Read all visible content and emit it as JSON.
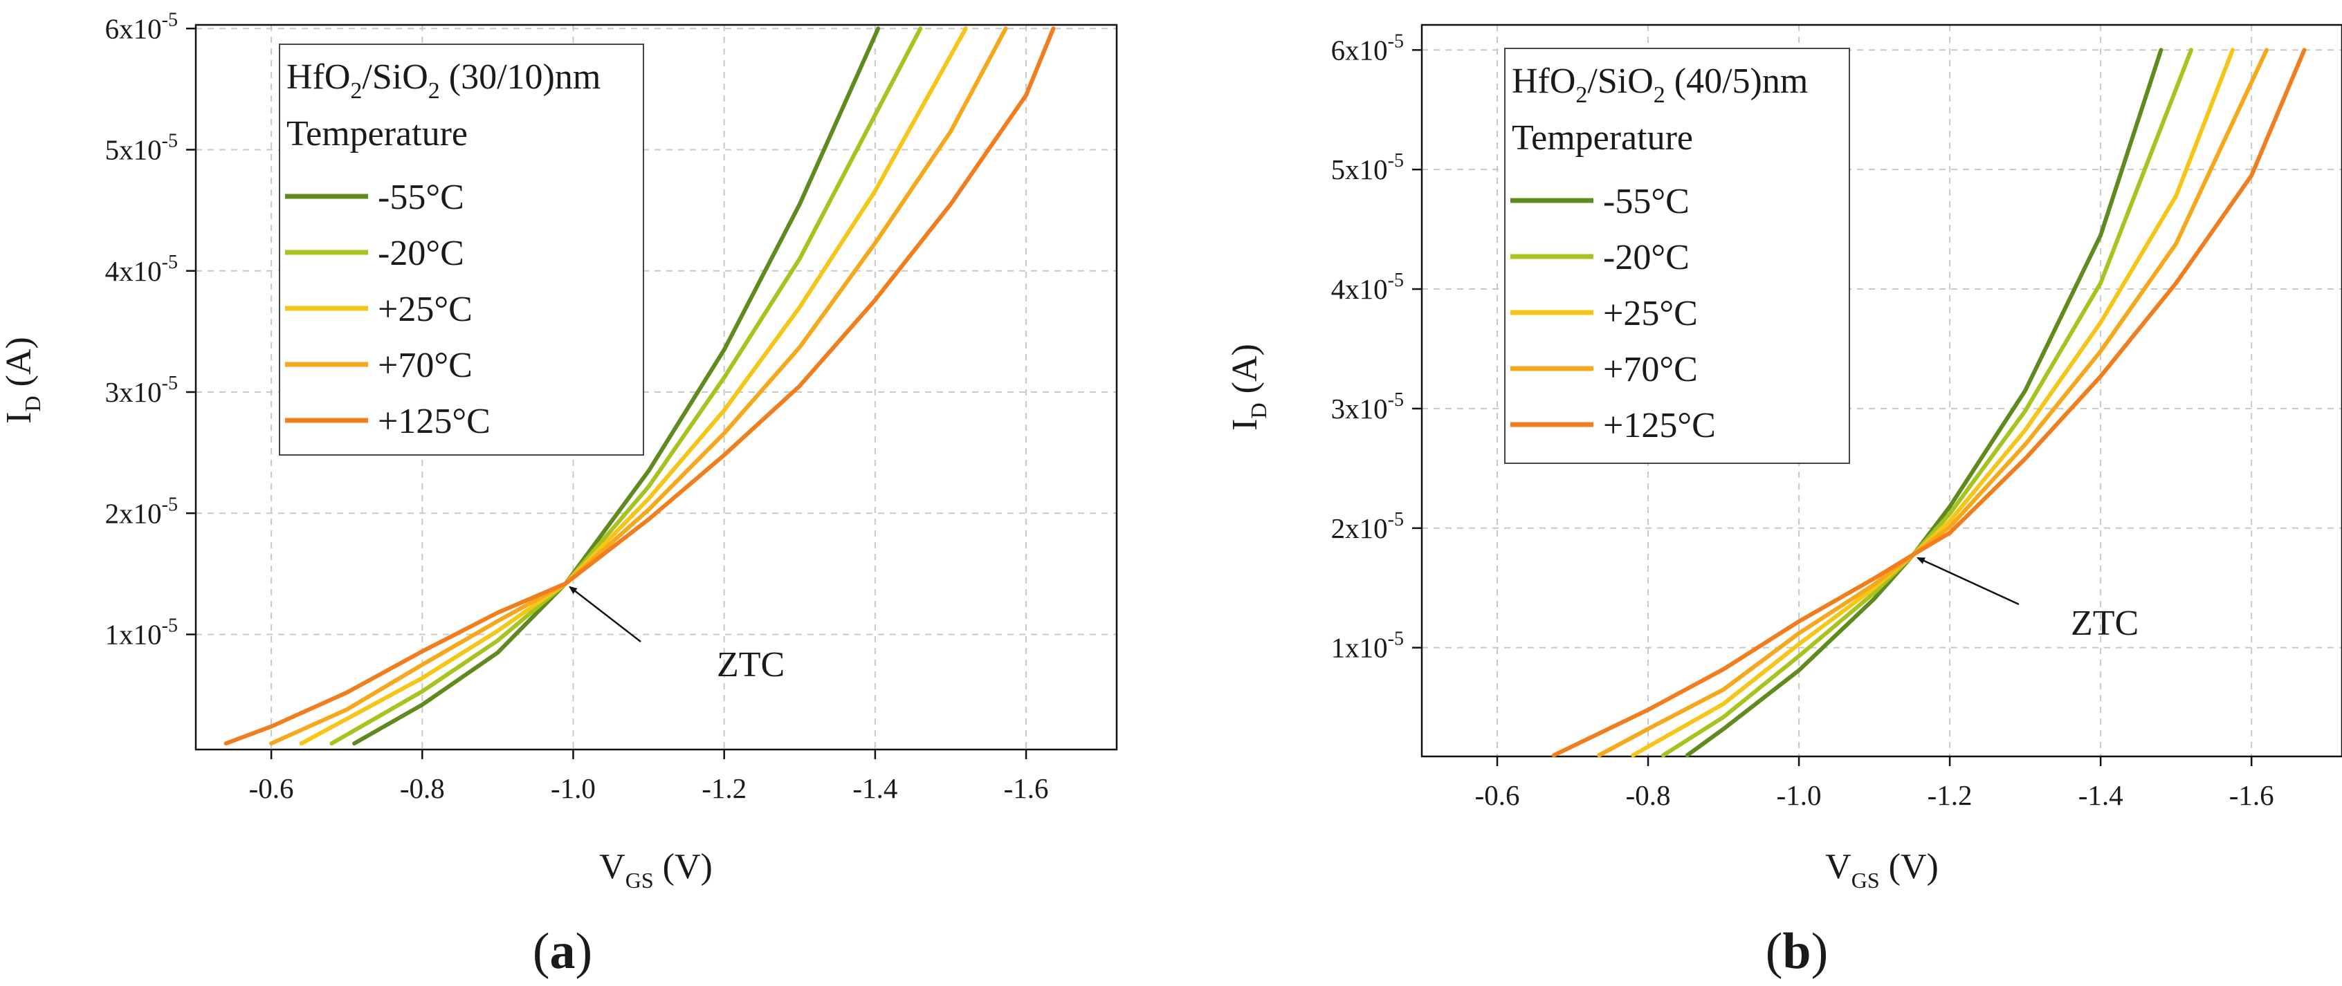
{
  "chart_data": [
    {
      "type": "line",
      "panel": "(a)",
      "panel_letter": "a",
      "legend_title_parts": [
        "HfO",
        "2",
        "/SiO",
        "2",
        " (30/10)nm"
      ],
      "legend_subtitle": "Temperature",
      "xlabel_main": "V",
      "xlabel_sub": "GS",
      "xlabel_unit": " (V)",
      "ylabel_main": "I",
      "ylabel_sub": "D",
      "ylabel_unit": " (A)",
      "xlim": [
        -0.5,
        -1.72
      ],
      "ylim": [
        5e-07,
        6.03e-05
      ],
      "x_ticks": [
        -0.6,
        -0.8,
        -1.0,
        -1.2,
        -1.4,
        -1.6
      ],
      "x_tick_labels": [
        "-0.6",
        "-0.8",
        "-1.0",
        "-1.2",
        "-1.4",
        "-1.6"
      ],
      "y_ticks": [
        1e-05,
        2e-05,
        3e-05,
        4e-05,
        5e-05,
        6e-05
      ],
      "y_tick_mantissa": [
        "1x10",
        "2x10",
        "3x10",
        "4x10",
        "5x10",
        "6x10"
      ],
      "y_tick_exponent": [
        "-5",
        "-5",
        "-5",
        "-5",
        "-5",
        "-5"
      ],
      "annotation": {
        "text": "ZTC",
        "x": -0.99,
        "y": 1.42e-05
      },
      "series": [
        {
          "name": "-55°C",
          "color": "#5f8a1e",
          "points": [
            [
              -0.71,
              1e-06
            ],
            [
              -0.8,
              4.2e-06
            ],
            [
              -0.9,
              8.5e-06
            ],
            [
              -0.99,
              1.42e-05
            ],
            [
              -1.1,
              2.35e-05
            ],
            [
              -1.2,
              3.35e-05
            ],
            [
              -1.3,
              4.55e-05
            ],
            [
              -1.404,
              6e-05
            ]
          ]
        },
        {
          "name": "-20°C",
          "color": "#a6c31f",
          "points": [
            [
              -0.68,
              1e-06
            ],
            [
              -0.8,
              5.3e-06
            ],
            [
              -0.9,
              9.5e-06
            ],
            [
              -0.99,
              1.42e-05
            ],
            [
              -1.1,
              2.22e-05
            ],
            [
              -1.2,
              3.12e-05
            ],
            [
              -1.3,
              4.1e-05
            ],
            [
              -1.46,
              6e-05
            ]
          ]
        },
        {
          "name": "+25°C",
          "color": "#f5c518",
          "points": [
            [
              -0.64,
              1e-06
            ],
            [
              -0.8,
              6.4e-06
            ],
            [
              -0.9,
              1.03e-05
            ],
            [
              -0.99,
              1.42e-05
            ],
            [
              -1.1,
              2.12e-05
            ],
            [
              -1.2,
              2.85e-05
            ],
            [
              -1.3,
              3.7e-05
            ],
            [
              -1.4,
              4.66e-05
            ],
            [
              -1.52,
              6e-05
            ]
          ]
        },
        {
          "name": "+70°C",
          "color": "#f6a81c",
          "points": [
            [
              -0.6,
              1e-06
            ],
            [
              -0.7,
              3.8e-06
            ],
            [
              -0.8,
              7.5e-06
            ],
            [
              -0.9,
              1.11e-05
            ],
            [
              -0.99,
              1.42e-05
            ],
            [
              -1.1,
              2.03e-05
            ],
            [
              -1.2,
              2.66e-05
            ],
            [
              -1.3,
              3.37e-05
            ],
            [
              -1.4,
              4.23e-05
            ],
            [
              -1.5,
              5.15e-05
            ],
            [
              -1.573,
              6e-05
            ]
          ]
        },
        {
          "name": "+125°C",
          "color": "#f07e1e",
          "points": [
            [
              -0.54,
              1e-06
            ],
            [
              -0.6,
              2.4e-06
            ],
            [
              -0.7,
              5.2e-06
            ],
            [
              -0.8,
              8.6e-06
            ],
            [
              -0.9,
              1.18e-05
            ],
            [
              -0.99,
              1.42e-05
            ],
            [
              -1.1,
              1.95e-05
            ],
            [
              -1.2,
              2.48e-05
            ],
            [
              -1.3,
              3.05e-05
            ],
            [
              -1.4,
              3.76e-05
            ],
            [
              -1.5,
              4.55e-05
            ],
            [
              -1.6,
              5.45e-05
            ],
            [
              -1.636,
              6e-05
            ]
          ]
        }
      ]
    },
    {
      "type": "line",
      "panel": "(b)",
      "panel_letter": "b",
      "legend_title_parts": [
        "HfO",
        "2",
        "/SiO",
        "2",
        " (40/5)nm"
      ],
      "legend_subtitle": "Temperature",
      "xlabel_main": "V",
      "xlabel_sub": "GS",
      "xlabel_unit": " (V)",
      "ylabel_main": "I",
      "ylabel_sub": "D",
      "ylabel_unit": " (A)",
      "xlim": [
        -0.5,
        -1.72
      ],
      "ylim": [
        9e-07,
        6.21e-05
      ],
      "x_ticks": [
        -0.6,
        -0.8,
        -1.0,
        -1.2,
        -1.4,
        -1.6
      ],
      "x_tick_labels": [
        "-0.6",
        "-0.8",
        "-1.0",
        "-1.2",
        "-1.4",
        "-1.6"
      ],
      "y_ticks": [
        1e-05,
        2e-05,
        3e-05,
        4e-05,
        5e-05,
        6e-05
      ],
      "y_tick_mantissa": [
        "1x10",
        "2x10",
        "3x10",
        "4x10",
        "5x10",
        "6x10"
      ],
      "y_tick_exponent": [
        "-5",
        "-5",
        "-5",
        "-5",
        "-5",
        "-5"
      ],
      "annotation": {
        "text": "ZTC",
        "x": -1.152,
        "y": 1.78e-05
      },
      "series": [
        {
          "name": "-55°C",
          "color": "#5f8a1e",
          "points": [
            [
              -0.852,
              1e-06
            ],
            [
              -0.9,
              3.2e-06
            ],
            [
              -1.0,
              8.1e-06
            ],
            [
              -1.1,
              1.41e-05
            ],
            [
              -1.152,
              1.78e-05
            ],
            [
              -1.2,
              2.18e-05
            ],
            [
              -1.3,
              3.15e-05
            ],
            [
              -1.4,
              4.45e-05
            ],
            [
              -1.48,
              6e-05
            ]
          ]
        },
        {
          "name": "-20°C",
          "color": "#a6c31f",
          "points": [
            [
              -0.82,
              1e-06
            ],
            [
              -0.9,
              4.2e-06
            ],
            [
              -1.0,
              9.3e-06
            ],
            [
              -1.1,
              1.46e-05
            ],
            [
              -1.152,
              1.78e-05
            ],
            [
              -1.2,
              2.12e-05
            ],
            [
              -1.3,
              2.98e-05
            ],
            [
              -1.4,
              4.05e-05
            ],
            [
              -1.52,
              6e-05
            ]
          ]
        },
        {
          "name": "+25°C",
          "color": "#f5c518",
          "points": [
            [
              -0.78,
              1e-06
            ],
            [
              -0.9,
              5.3e-06
            ],
            [
              -1.0,
              1.03e-05
            ],
            [
              -1.1,
              1.5e-05
            ],
            [
              -1.152,
              1.78e-05
            ],
            [
              -1.2,
              2.06e-05
            ],
            [
              -1.3,
              2.82e-05
            ],
            [
              -1.4,
              3.72e-05
            ],
            [
              -1.5,
              4.78e-05
            ],
            [
              -1.575,
              6e-05
            ]
          ]
        },
        {
          "name": "+70°C",
          "color": "#f6a81c",
          "points": [
            [
              -0.735,
              1e-06
            ],
            [
              -0.8,
              3.2e-06
            ],
            [
              -0.9,
              6.5e-06
            ],
            [
              -1.0,
              1.12e-05
            ],
            [
              -1.1,
              1.53e-05
            ],
            [
              -1.152,
              1.78e-05
            ],
            [
              -1.2,
              2.01e-05
            ],
            [
              -1.3,
              2.7e-05
            ],
            [
              -1.4,
              3.48e-05
            ],
            [
              -1.5,
              4.38e-05
            ],
            [
              -1.62,
              6e-05
            ]
          ]
        },
        {
          "name": "+125°C",
          "color": "#f07e1e",
          "points": [
            [
              -0.675,
              1e-06
            ],
            [
              -0.8,
              4.8e-06
            ],
            [
              -0.9,
              8.2e-06
            ],
            [
              -1.0,
              1.22e-05
            ],
            [
              -1.1,
              1.58e-05
            ],
            [
              -1.152,
              1.78e-05
            ],
            [
              -1.2,
              1.96e-05
            ],
            [
              -1.3,
              2.58e-05
            ],
            [
              -1.4,
              3.27e-05
            ],
            [
              -1.5,
              4.05e-05
            ],
            [
              -1.6,
              4.95e-05
            ],
            [
              -1.67,
              6e-05
            ]
          ]
        }
      ]
    }
  ]
}
